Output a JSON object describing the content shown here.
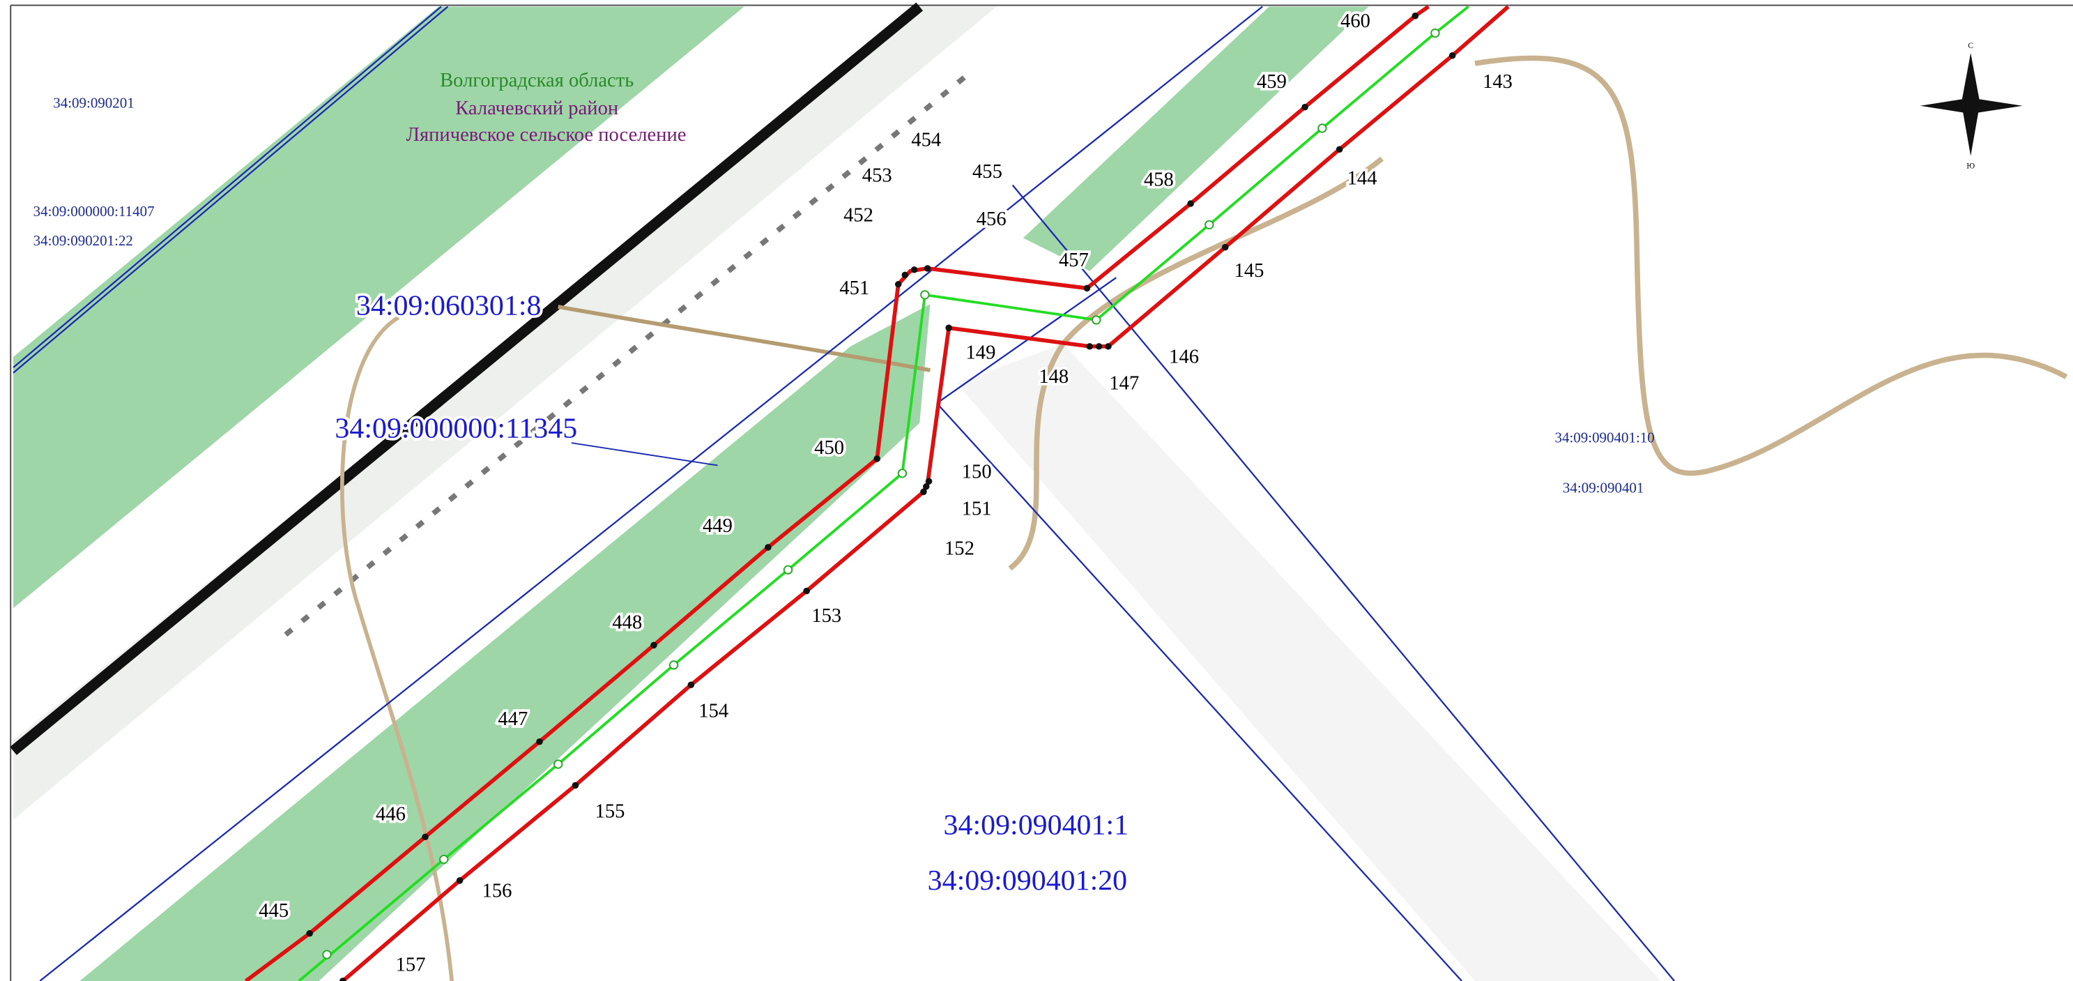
{
  "region": {
    "oblast": "Волгоградская область",
    "rayon": "Калачевский район",
    "poselenie": "Ляпичевское сельское поселение"
  },
  "parcels": [
    "34:09:090201",
    "34:09:000000:11407",
    "34:09:090201:22",
    "34:09:060301:8",
    "34:09:000000:11345",
    "34:09:090401:10",
    "34:09:090401",
    "34:09:090401:1",
    "34:09:090401:20"
  ],
  "points": [
    "460",
    "459",
    "458",
    "457",
    "456",
    "455",
    "454",
    "453",
    "452",
    "451",
    "450",
    "449",
    "448",
    "447",
    "446",
    "445",
    "157",
    "156",
    "155",
    "154",
    "153",
    "152",
    "151",
    "150",
    "149",
    "148",
    "147",
    "146",
    "145",
    "144",
    "143"
  ],
  "compass": {
    "north": "С",
    "south": "Ю"
  }
}
